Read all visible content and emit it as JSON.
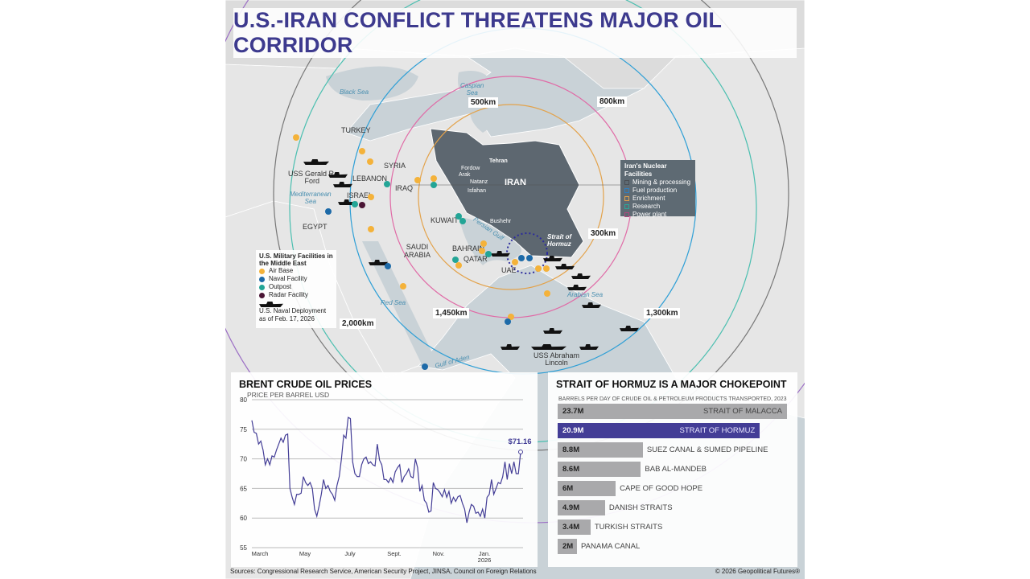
{
  "title": "U.S.-IRAN CONFLICT THREATENS MAJOR OIL CORRIDOR",
  "map": {
    "countries": {
      "turkey": "TURKEY",
      "syria": "SYRIA",
      "lebanon": "LEBANON",
      "israel": "ISRAEL",
      "iraq": "IRAQ",
      "egypt": "EGYPT",
      "kuwait": "KUWAIT",
      "saudi": "SAUDI\nARABIA",
      "bahrain": "BAHRAIN",
      "qatar": "QATAR",
      "uae": "UAE",
      "iran": "IRAN"
    },
    "seas": {
      "black": "Black Sea",
      "caspian": "Caspian\nSea",
      "med": "Mediterranean\nSea",
      "red": "Red Sea",
      "gulf": "Persian Gulf",
      "arabian": "Arabian Sea",
      "aden": "Gulf of Aden"
    },
    "strait": "Strait of\nHormuz",
    "ranges": [
      "300km",
      "500km",
      "800km",
      "1,300km",
      "1,450km",
      "2,000km"
    ],
    "ships": {
      "ford": "USS Gerald R.\nFord",
      "lincoln": "USS Abraham\nLincoln"
    },
    "iran_sites": [
      "Tehran",
      "Fordow",
      "Arak",
      "Natanz",
      "Isfahan",
      "Bushehr"
    ]
  },
  "legend_military": {
    "title": "U.S. Military Facilities in the Middle East",
    "items": [
      {
        "label": "Air Base",
        "color": "#f4b23a"
      },
      {
        "label": "Naval Facility",
        "color": "#1d6aa8"
      },
      {
        "label": "Outpost",
        "color": "#23a596"
      },
      {
        "label": "Radar Facility",
        "color": "#4a1535"
      }
    ],
    "naval": "U.S. Naval Deployment\nas of Feb. 17, 2026"
  },
  "legend_nuclear": {
    "title": "Iran's Nuclear Facilities",
    "items": [
      {
        "label": "Mining & processing",
        "color": "#4a4f55"
      },
      {
        "label": "Fuel production",
        "color": "#2e7fc0"
      },
      {
        "label": "Enrichment",
        "color": "#e3a24a"
      },
      {
        "label": "Research",
        "color": "#2aa99a"
      },
      {
        "label": "Power plant",
        "color": "#b0477e"
      }
    ]
  },
  "chart_data": [
    {
      "type": "line",
      "title": "BRENT CRUDE OIL PRICES",
      "ylabel": "PRICE PER BARREL USD",
      "ylim": [
        55,
        80
      ],
      "yticks": [
        80,
        75,
        70,
        65,
        60,
        55
      ],
      "xticks": [
        "March",
        "May",
        "July",
        "Sept.",
        "Nov.",
        "Jan.\n2026"
      ],
      "last_label": "$71.16",
      "values": [
        76.5,
        74.5,
        74.3,
        72.5,
        73,
        71.5,
        69,
        70,
        69,
        70.5,
        70.3,
        71.5,
        72.5,
        73.5,
        72.8,
        74,
        74.2,
        65,
        63.5,
        62.3,
        64,
        64,
        64.2,
        67,
        66,
        65.5,
        66,
        65,
        61.5,
        60.3,
        62,
        64,
        66.5,
        65,
        65.5,
        64.5,
        64,
        63,
        65.5,
        67,
        70,
        74,
        73.5,
        77,
        76.8,
        69.5,
        67.5,
        67,
        67,
        69,
        70,
        70.3,
        69.2,
        69.5,
        69,
        68.8,
        72.5,
        69.8,
        69,
        66.5,
        66.5,
        66,
        66.8,
        66,
        67.8,
        68.5,
        69,
        66,
        67,
        67.5,
        68.3,
        67,
        66.8,
        70,
        68.5,
        64.5,
        65.5,
        63,
        62.5,
        61,
        61.2,
        66,
        65,
        64.8,
        64.3,
        63.6,
        64.8,
        63.5,
        64.5,
        62.5,
        63.5,
        62.8,
        63.6,
        63.8,
        62.5,
        61.5,
        59.2,
        61,
        62.3,
        62,
        60.8,
        61,
        60.3,
        61.5,
        60,
        63.5,
        64,
        66.5,
        64,
        65,
        66,
        65.8,
        67,
        69.5,
        66.5,
        69.2,
        67.5,
        69.5,
        67.5,
        67.5,
        71.16
      ]
    },
    {
      "type": "bar",
      "title": "STRAIT OF HORMUZ IS A MAJOR CHOKEPOINT",
      "subtitle": "BARRELS PER DAY OF CRUDE OIL & PETROLEUM PRODUCTS TRANSPORTED, 2023",
      "categories": [
        "STRAIT OF MALACCA",
        "STRAIT OF HORMUZ",
        "SUEZ CANAL & SUMED PIPELINE",
        "BAB AL-MANDEB",
        "CAPE OF GOOD HOPE",
        "DANISH STRAITS",
        "TURKISH STRAITS",
        "PANAMA CANAL"
      ],
      "values": [
        23.7,
        20.9,
        8.8,
        8.6,
        6,
        4.9,
        3.4,
        2
      ],
      "labels": [
        "23.7M",
        "20.9M",
        "8.8M",
        "8.6M",
        "6M",
        "4.9M",
        "3.4M",
        "2M"
      ],
      "highlight": "STRAIT OF HORMUZ",
      "highlight_color": "#433d96",
      "bar_color": "#a9a9ab"
    }
  ],
  "footer": {
    "sources": "Sources: Congressional Research Service, American Security Project, JINSA, Council on Foreign Relations",
    "copyright": "© 2026 Geopolitical Futures®"
  }
}
